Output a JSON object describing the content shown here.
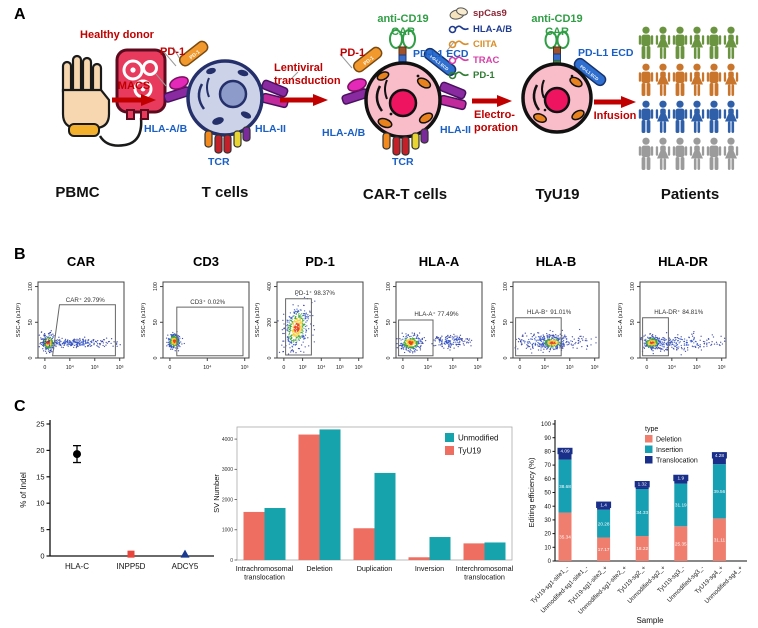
{
  "panel_a": {
    "label": "A",
    "donor_label": "Healthy donor",
    "arrow_macs": "MACS",
    "arrow_lentiviral": "Lentiviral\ntransduction",
    "arrow_electroporation": "Electro-\nporation",
    "arrow_infusion": "Infusion",
    "t_cell": {
      "pd1": "PD-1",
      "hla_ab": "HLA-A/B",
      "hla_ii": "HLA-II",
      "tcr": "TCR"
    },
    "car_t_cell": {
      "car_line1": "anti-CD19",
      "car_line2": "CAR",
      "pd1": "PD-1",
      "pdl1_ecd": "PD-L1 ECD",
      "hla_ab": "HLA-A/B",
      "hla_ii": "HLA-II",
      "tcr": "TCR"
    },
    "tyu19_cell": {
      "car_line1": "anti-CD19",
      "car_line2": "CAR",
      "pdl1_ecd": "PD-L1 ECD"
    },
    "crispr_legend": [
      {
        "label": "spCas9",
        "color": "#8b2635",
        "icon": "cas9-protein-icon"
      },
      {
        "label": "HLA-A/B",
        "color": "#1f3b8f",
        "icon": "sgrna-icon"
      },
      {
        "label": "CIITA",
        "color": "#d98f2b",
        "icon": "sgrna-icon"
      },
      {
        "label": "TRAC",
        "color": "#d63fa8",
        "icon": "sgrna-icon"
      },
      {
        "label": "PD-1",
        "color": "#2f7d32",
        "icon": "sgrna-icon"
      }
    ],
    "captions": [
      "PBMC",
      "T cells",
      "CAR-T cells",
      "TyU19",
      "Patients"
    ],
    "patients_rows": [
      {
        "color": "#6b9440"
      },
      {
        "color": "#c9752c"
      },
      {
        "color": "#2e5fa8"
      },
      {
        "color": "#9b9b9b"
      }
    ]
  },
  "panel_b": {
    "label": "B",
    "plots": [
      {
        "title": "CAR",
        "gate_label": "CAR⁺  29.79%",
        "y_label": "SSC-A  (x10⁵)",
        "y_ticks": [
          "0",
          "50",
          "100"
        ],
        "x_ticks": [
          "0",
          "10⁴",
          "10⁵",
          "10⁶"
        ]
      },
      {
        "title": "CD3",
        "gate_label": "CD3⁺ 0.02%",
        "y_label": "SSC-A  (x10⁵)",
        "y_ticks": [
          "0",
          "50",
          "100"
        ],
        "x_ticks": [
          "0",
          "10⁴",
          "10⁵"
        ]
      },
      {
        "title": "PD-1",
        "gate_label": "PD-1⁺ 98.37%",
        "y_label": "SSC-A  (x10⁴)",
        "y_ticks": [
          "0",
          "200",
          "400"
        ],
        "x_ticks": [
          "0",
          "10³",
          "10⁴",
          "10⁵",
          "10⁶"
        ]
      },
      {
        "title": "HLA-A",
        "gate_label": "HLA-A⁺ 77.49%",
        "y_label": "SSC-A  (x10⁵)",
        "y_ticks": [
          "0",
          "50",
          "100"
        ],
        "x_ticks": [
          "0",
          "10⁴",
          "10⁵",
          "10⁶"
        ]
      },
      {
        "title": "HLA-B",
        "gate_label": "HLA-B⁺ 91.01%",
        "y_label": "SSC-A  (x10⁵)",
        "y_ticks": [
          "0",
          "50",
          "100"
        ],
        "x_ticks": [
          "0",
          "10⁴",
          "10⁵",
          "10⁶"
        ]
      },
      {
        "title": "HLA-DR",
        "gate_label": "HLA-DR⁺ 84.81%",
        "y_label": "SSC-A  (x10⁵)",
        "y_ticks": [
          "0",
          "50",
          "100"
        ],
        "x_ticks": [
          "0",
          "10⁴",
          "10⁵",
          "10⁶"
        ]
      }
    ]
  },
  "panel_c": {
    "label": "C"
  },
  "chart_data": [
    {
      "type": "scatter",
      "ylabel": "% of Indel",
      "ylim": [
        0,
        25
      ],
      "yticks": [
        0,
        5,
        10,
        15,
        20,
        25
      ],
      "categories": [
        "HLA-C",
        "INPP5D",
        "ADCY5"
      ],
      "points": [
        {
          "category": "HLA-C",
          "value": 19.3,
          "error": 1.6,
          "marker": "circle",
          "color": "#000000"
        },
        {
          "category": "INPP5D",
          "value": 0.35,
          "error": 0,
          "marker": "square",
          "color": "#e8453c"
        },
        {
          "category": "ADCY5",
          "value": 0.35,
          "error": 0,
          "marker": "triangle",
          "color": "#1a3a8f"
        }
      ]
    },
    {
      "type": "bar",
      "ylabel": "SV Number",
      "ylim": [
        0,
        4400
      ],
      "yticks": [
        0,
        1000,
        2000,
        3000,
        4000
      ],
      "categories": [
        "Intrachromosomal translocation",
        "Deletion",
        "Duplication",
        "Inversion",
        "Interchromosomal translocation"
      ],
      "series": [
        {
          "name": "TyU19",
          "color": "#ee6f62",
          "values": [
            1590,
            4150,
            1050,
            90,
            550
          ]
        },
        {
          "name": "Unmodified",
          "color": "#16a3ac",
          "values": [
            1720,
            4320,
            2880,
            760,
            580
          ]
        }
      ],
      "legend_position": "top-right"
    },
    {
      "type": "stacked_bar",
      "ylabel": "Editing efficiency (%)",
      "xlabel": "Sample",
      "legend_title": "type",
      "ylim": [
        0,
        100
      ],
      "yticks": [
        0,
        10,
        20,
        30,
        40,
        50,
        60,
        70,
        80,
        90,
        100
      ],
      "categories": [
        "TyU19-sg1-site1_-",
        "Unmodified-sg1-site1_-",
        "TyU19-sg1-site2_+",
        "Unmodified-sg1-site2_+",
        "TyU19-sg2_+",
        "Unmodified-sg2_+",
        "TyU19-sg3_-",
        "Unmodified-sg3_-",
        "TyU19-sg4_+",
        "Unmodified-sg4_+"
      ],
      "series": [
        {
          "name": "Deletion",
          "color": "#ef7e6e",
          "values": [
            35.34,
            0,
            17.17,
            0,
            18.22,
            0,
            25.35,
            0,
            31.11,
            0
          ]
        },
        {
          "name": "Insertion",
          "color": "#17a0b4",
          "values": [
            38.68,
            0,
            20.28,
            0,
            34.33,
            0,
            31.19,
            0,
            39.56,
            0
          ]
        },
        {
          "name": "Translocation",
          "color": "#1a2f8a",
          "values": [
            4.09,
            0,
            1.4,
            0,
            1.32,
            0,
            1.9,
            0,
            4.28,
            0
          ]
        }
      ]
    }
  ]
}
